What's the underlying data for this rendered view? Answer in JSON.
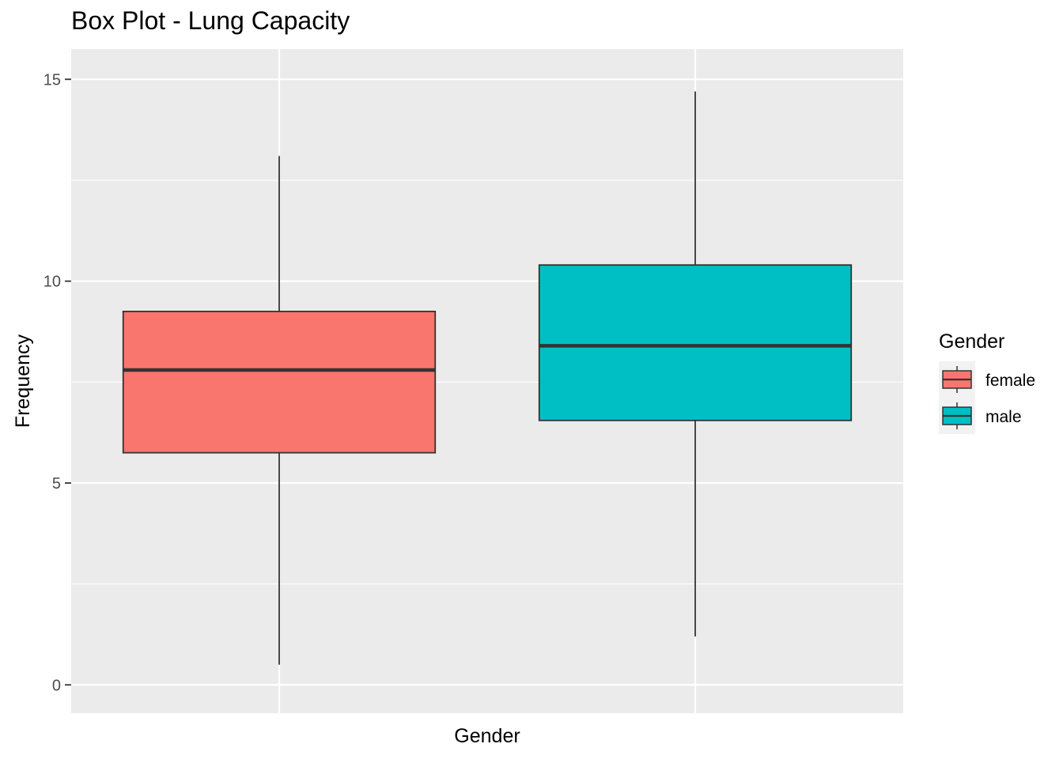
{
  "chart_data": {
    "type": "box",
    "title": "Box Plot - Lung Capacity",
    "xlabel": "Gender",
    "ylabel": "Frequency",
    "ylim": [
      -0.7,
      15.75
    ],
    "yticks": [
      0,
      5,
      10,
      15
    ],
    "ytick_labels": [
      "0",
      "5",
      "10",
      "15"
    ],
    "y_minor_ticks": [
      2.5,
      7.5,
      12.5
    ],
    "grid": true,
    "legend": {
      "title": "Gender",
      "position": "right"
    },
    "series": [
      {
        "name": "female",
        "color": "#F8766D",
        "whisker_low": 0.5,
        "q1": 5.75,
        "median": 7.8,
        "q3": 9.25,
        "whisker_high": 13.1
      },
      {
        "name": "male",
        "color": "#00BFC4",
        "whisker_low": 1.2,
        "q1": 6.55,
        "median": 8.4,
        "q3": 10.4,
        "whisker_high": 14.7
      }
    ],
    "colors": {
      "panel_background": "#EBEBEB",
      "grid": "#FFFFFF",
      "box_outline": "#333333"
    }
  }
}
